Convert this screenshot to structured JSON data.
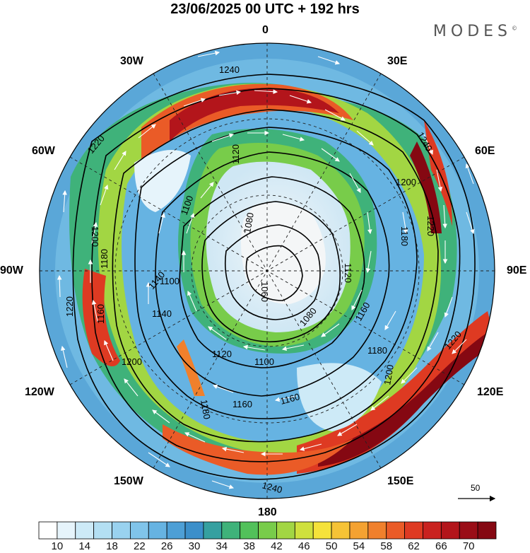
{
  "title": "23/06/2025  00 UTC  + 192 hrs",
  "brand": "MODES",
  "brand_mark": "©",
  "longitude_labels": {
    "n0": "0",
    "n30e": "30E",
    "n60e": "60E",
    "n90e": "90E",
    "n120e": "120E",
    "n150e": "150E",
    "n180": "180",
    "n150w": "150W",
    "n120w": "120W",
    "n90w": "90W",
    "n60w": "60W",
    "n30w": "30W"
  },
  "contour_labels": [
    "1240",
    "1240",
    "1220",
    "1220",
    "1220",
    "1200",
    "1200",
    "1180",
    "1180",
    "1180",
    "1160",
    "1160",
    "1160",
    "1140",
    "1140",
    "1120",
    "1120",
    "1120",
    "1100",
    "1100",
    "1100",
    "1080",
    "1060",
    "1080",
    "1160",
    "1200",
    "1220",
    "1240",
    "1180",
    "1200"
  ],
  "reference_vector": "50",
  "colorbar": {
    "colors": [
      "#ffffff",
      "#e6f4fb",
      "#cdeaf7",
      "#b3dff3",
      "#99d2ef",
      "#80c4ea",
      "#66b3e2",
      "#4d9fd6",
      "#3b8fca",
      "#35a0a0",
      "#3fb27a",
      "#52c15a",
      "#78cc4a",
      "#a2d643",
      "#cfe03d",
      "#f5e23a",
      "#f6c336",
      "#f4a231",
      "#f0802c",
      "#ea5b27",
      "#de3a22",
      "#c9221f",
      "#b3151b",
      "#9a0d17",
      "#850812"
    ],
    "tick_labels": [
      "10",
      "14",
      "18",
      "22",
      "26",
      "30",
      "34",
      "38",
      "42",
      "46",
      "50",
      "54",
      "58",
      "62",
      "66",
      "70"
    ]
  }
}
